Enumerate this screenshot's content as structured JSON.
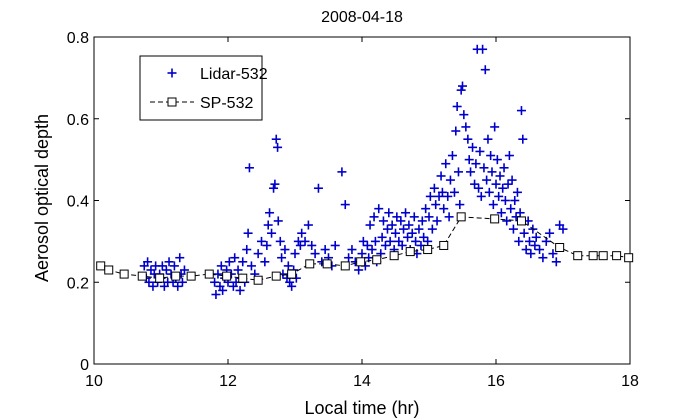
{
  "chart_data": {
    "type": "scatter",
    "title": "2008-04-18",
    "xlabel": "Local time (hr)",
    "ylabel": "Aerosol optical depth",
    "xlim": [
      10,
      18
    ],
    "ylim": [
      0,
      0.8
    ],
    "xticks": [
      "10",
      "12",
      "14",
      "16",
      "18"
    ],
    "yticks": [
      "0",
      "0.2",
      "0.4",
      "0.6",
      "0.8"
    ],
    "grid": false,
    "legend_position": "top-left",
    "series": [
      {
        "name": "Lidar-532",
        "marker": "plus",
        "line": "none",
        "color": "#0000cc",
        "points": [
          [
            10.75,
            0.24
          ],
          [
            10.78,
            0.21
          ],
          [
            10.8,
            0.25
          ],
          [
            10.82,
            0.2
          ],
          [
            10.85,
            0.23
          ],
          [
            10.88,
            0.19
          ],
          [
            10.9,
            0.22
          ],
          [
            10.92,
            0.24
          ],
          [
            10.95,
            0.2
          ],
          [
            10.98,
            0.22
          ],
          [
            11.0,
            0.21
          ],
          [
            11.02,
            0.24
          ],
          [
            11.05,
            0.19
          ],
          [
            11.08,
            0.23
          ],
          [
            11.1,
            0.2
          ],
          [
            11.12,
            0.25
          ],
          [
            11.15,
            0.22
          ],
          [
            11.18,
            0.2
          ],
          [
            11.2,
            0.24
          ],
          [
            11.22,
            0.21
          ],
          [
            11.25,
            0.19
          ],
          [
            11.28,
            0.26
          ],
          [
            11.3,
            0.22
          ],
          [
            11.32,
            0.2
          ],
          [
            11.35,
            0.23
          ],
          [
            11.8,
            0.2
          ],
          [
            11.82,
            0.17
          ],
          [
            11.85,
            0.22
          ],
          [
            11.88,
            0.19
          ],
          [
            11.9,
            0.24
          ],
          [
            11.92,
            0.18
          ],
          [
            11.95,
            0.21
          ],
          [
            11.98,
            0.23
          ],
          [
            12.0,
            0.2
          ],
          [
            12.02,
            0.25
          ],
          [
            12.05,
            0.22
          ],
          [
            12.08,
            0.19
          ],
          [
            12.1,
            0.26
          ],
          [
            12.12,
            0.2
          ],
          [
            12.15,
            0.23
          ],
          [
            12.18,
            0.18
          ],
          [
            12.2,
            0.21
          ],
          [
            12.22,
            0.25
          ],
          [
            12.25,
            0.2
          ],
          [
            12.28,
            0.28
          ],
          [
            12.3,
            0.32
          ],
          [
            12.32,
            0.48
          ],
          [
            12.35,
            0.24
          ],
          [
            12.4,
            0.22
          ],
          [
            12.45,
            0.27
          ],
          [
            12.5,
            0.3
          ],
          [
            12.55,
            0.25
          ],
          [
            12.58,
            0.29
          ],
          [
            12.6,
            0.34
          ],
          [
            12.62,
            0.37
          ],
          [
            12.65,
            0.32
          ],
          [
            12.68,
            0.43
          ],
          [
            12.7,
            0.44
          ],
          [
            12.72,
            0.55
          ],
          [
            12.74,
            0.53
          ],
          [
            12.75,
            0.35
          ],
          [
            12.78,
            0.3
          ],
          [
            12.8,
            0.26
          ],
          [
            12.82,
            0.22
          ],
          [
            12.85,
            0.28
          ],
          [
            12.88,
            0.21
          ],
          [
            12.9,
            0.24
          ],
          [
            12.92,
            0.2
          ],
          [
            12.95,
            0.19
          ],
          [
            12.98,
            0.23
          ],
          [
            13.0,
            0.27
          ],
          [
            13.02,
            0.21
          ],
          [
            13.05,
            0.3
          ],
          [
            13.08,
            0.29
          ],
          [
            13.1,
            0.32
          ],
          [
            13.15,
            0.3
          ],
          [
            13.2,
            0.34
          ],
          [
            13.25,
            0.29
          ],
          [
            13.3,
            0.27
          ],
          [
            13.35,
            0.43
          ],
          [
            13.4,
            0.25
          ],
          [
            13.45,
            0.28
          ],
          [
            13.5,
            0.26
          ],
          [
            13.55,
            0.24
          ],
          [
            13.6,
            0.29
          ],
          [
            13.7,
            0.47
          ],
          [
            13.75,
            0.39
          ],
          [
            13.8,
            0.26
          ],
          [
            13.85,
            0.28
          ],
          [
            13.9,
            0.25
          ],
          [
            13.95,
            0.23
          ],
          [
            14.0,
            0.27
          ],
          [
            14.02,
            0.3
          ],
          [
            14.05,
            0.24
          ],
          [
            14.08,
            0.29
          ],
          [
            14.1,
            0.26
          ],
          [
            14.12,
            0.34
          ],
          [
            14.15,
            0.28
          ],
          [
            14.18,
            0.36
          ],
          [
            14.2,
            0.3
          ],
          [
            14.22,
            0.25
          ],
          [
            14.25,
            0.38
          ],
          [
            14.28,
            0.27
          ],
          [
            14.3,
            0.31
          ],
          [
            14.32,
            0.35
          ],
          [
            14.35,
            0.29
          ],
          [
            14.38,
            0.33
          ],
          [
            14.4,
            0.37
          ],
          [
            14.42,
            0.3
          ],
          [
            14.45,
            0.34
          ],
          [
            14.48,
            0.28
          ],
          [
            14.5,
            0.32
          ],
          [
            14.52,
            0.36
          ],
          [
            14.55,
            0.3
          ],
          [
            14.58,
            0.35
          ],
          [
            14.6,
            0.29
          ],
          [
            14.62,
            0.33
          ],
          [
            14.65,
            0.37
          ],
          [
            14.68,
            0.31
          ],
          [
            14.7,
            0.34
          ],
          [
            14.72,
            0.28
          ],
          [
            14.75,
            0.32
          ],
          [
            14.78,
            0.36
          ],
          [
            14.8,
            0.3
          ],
          [
            14.82,
            0.27
          ],
          [
            14.85,
            0.33
          ],
          [
            14.88,
            0.29
          ],
          [
            14.9,
            0.35
          ],
          [
            14.92,
            0.31
          ],
          [
            14.95,
            0.38
          ],
          [
            14.98,
            0.3
          ],
          [
            15.0,
            0.36
          ],
          [
            15.02,
            0.41
          ],
          [
            15.05,
            0.33
          ],
          [
            15.08,
            0.43
          ],
          [
            15.1,
            0.39
          ],
          [
            15.12,
            0.35
          ],
          [
            15.15,
            0.41
          ],
          [
            15.18,
            0.46
          ],
          [
            15.2,
            0.42
          ],
          [
            15.22,
            0.38
          ],
          [
            15.25,
            0.49
          ],
          [
            15.28,
            0.41
          ],
          [
            15.3,
            0.36
          ],
          [
            15.32,
            0.45
          ],
          [
            15.35,
            0.51
          ],
          [
            15.38,
            0.42
          ],
          [
            15.4,
            0.57
          ],
          [
            15.42,
            0.63
          ],
          [
            15.44,
            0.47
          ],
          [
            15.46,
            0.39
          ],
          [
            15.48,
            0.67
          ],
          [
            15.5,
            0.68
          ],
          [
            15.52,
            0.61
          ],
          [
            15.55,
            0.58
          ],
          [
            15.58,
            0.55
          ],
          [
            15.6,
            0.5
          ],
          [
            15.62,
            0.47
          ],
          [
            15.65,
            0.53
          ],
          [
            15.68,
            0.44
          ],
          [
            15.7,
            0.49
          ],
          [
            15.72,
            0.77
          ],
          [
            15.74,
            0.43
          ],
          [
            15.76,
            0.52
          ],
          [
            15.78,
            0.41
          ],
          [
            15.8,
            0.77
          ],
          [
            15.82,
            0.48
          ],
          [
            15.84,
            0.72
          ],
          [
            15.86,
            0.45
          ],
          [
            15.88,
            0.55
          ],
          [
            15.9,
            0.42
          ],
          [
            15.92,
            0.51
          ],
          [
            15.94,
            0.47
          ],
          [
            15.96,
            0.39
          ],
          [
            15.98,
            0.58
          ],
          [
            16.0,
            0.44
          ],
          [
            16.02,
            0.5
          ],
          [
            16.04,
            0.41
          ],
          [
            16.06,
            0.46
          ],
          [
            16.08,
            0.37
          ],
          [
            16.1,
            0.43
          ],
          [
            16.12,
            0.48
          ],
          [
            16.14,
            0.4
          ],
          [
            16.16,
            0.35
          ],
          [
            16.18,
            0.44
          ],
          [
            16.2,
            0.51
          ],
          [
            16.22,
            0.38
          ],
          [
            16.24,
            0.45
          ],
          [
            16.26,
            0.33
          ],
          [
            16.28,
            0.4
          ],
          [
            16.3,
            0.36
          ],
          [
            16.32,
            0.42
          ],
          [
            16.34,
            0.3
          ],
          [
            16.36,
            0.37
          ],
          [
            16.38,
            0.62
          ],
          [
            16.4,
            0.55
          ],
          [
            16.42,
            0.32
          ],
          [
            16.45,
            0.28
          ],
          [
            16.48,
            0.35
          ],
          [
            16.5,
            0.3
          ],
          [
            16.52,
            0.27
          ],
          [
            16.55,
            0.33
          ],
          [
            16.58,
            0.29
          ],
          [
            16.6,
            0.31
          ],
          [
            16.65,
            0.28
          ],
          [
            16.7,
            0.26
          ],
          [
            16.75,
            0.3
          ],
          [
            16.8,
            0.32
          ],
          [
            16.85,
            0.27
          ],
          [
            16.9,
            0.25
          ],
          [
            16.95,
            0.34
          ],
          [
            17.0,
            0.33
          ]
        ]
      },
      {
        "name": "SP-532",
        "marker": "square",
        "line": "dashed",
        "color": "#000000",
        "points": [
          [
            10.1,
            0.24
          ],
          [
            10.22,
            0.23
          ],
          [
            10.45,
            0.22
          ],
          [
            10.72,
            0.215
          ],
          [
            10.98,
            0.21
          ],
          [
            11.22,
            0.215
          ],
          [
            11.45,
            0.215
          ],
          [
            11.72,
            0.22
          ],
          [
            11.98,
            0.215
          ],
          [
            12.22,
            0.21
          ],
          [
            12.45,
            0.205
          ],
          [
            12.72,
            0.215
          ],
          [
            12.95,
            0.22
          ],
          [
            13.22,
            0.245
          ],
          [
            13.48,
            0.245
          ],
          [
            13.75,
            0.24
          ],
          [
            13.98,
            0.25
          ],
          [
            14.22,
            0.255
          ],
          [
            14.48,
            0.265
          ],
          [
            14.72,
            0.275
          ],
          [
            14.98,
            0.28
          ],
          [
            15.22,
            0.29
          ],
          [
            15.48,
            0.36
          ],
          [
            15.98,
            0.355
          ],
          [
            16.38,
            0.35
          ],
          [
            16.95,
            0.285
          ],
          [
            17.22,
            0.265
          ],
          [
            17.45,
            0.265
          ],
          [
            17.6,
            0.265
          ],
          [
            17.8,
            0.265
          ],
          [
            17.98,
            0.26
          ]
        ]
      }
    ]
  }
}
